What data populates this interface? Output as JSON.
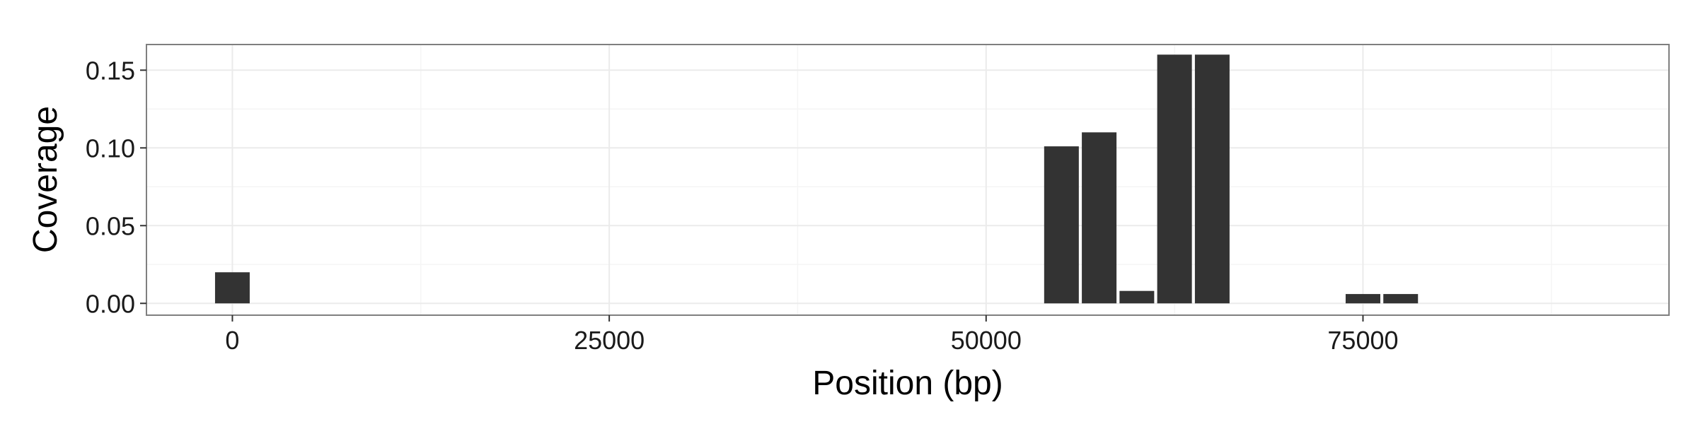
{
  "chart_data": {
    "type": "bar",
    "title": "",
    "xlabel": "Position (bp)",
    "ylabel": "Coverage",
    "xlim": [
      -5700,
      95300
    ],
    "ylim": [
      -0.0076,
      0.1665
    ],
    "x_ticks": [
      0,
      25000,
      50000,
      75000
    ],
    "x_tick_labels": [
      "0",
      "25000",
      "50000",
      "75000"
    ],
    "y_ticks": [
      0.0,
      0.05,
      0.1,
      0.15
    ],
    "y_tick_labels": [
      "0.00",
      "0.05",
      "0.10",
      "0.15"
    ],
    "grid": true,
    "bar_width": 2300,
    "x": [
      0,
      55000,
      57500,
      60000,
      62500,
      65000,
      75000,
      77500
    ],
    "values": [
      0.02,
      0.101,
      0.11,
      0.008,
      0.16,
      0.16,
      0.006,
      0.006
    ],
    "colors": {
      "bar": "#333333",
      "panel_border": "#7f7f7f",
      "grid_major": "#ebebeb",
      "grid_minor": "#f5f5f5",
      "background": "#ffffff"
    }
  }
}
